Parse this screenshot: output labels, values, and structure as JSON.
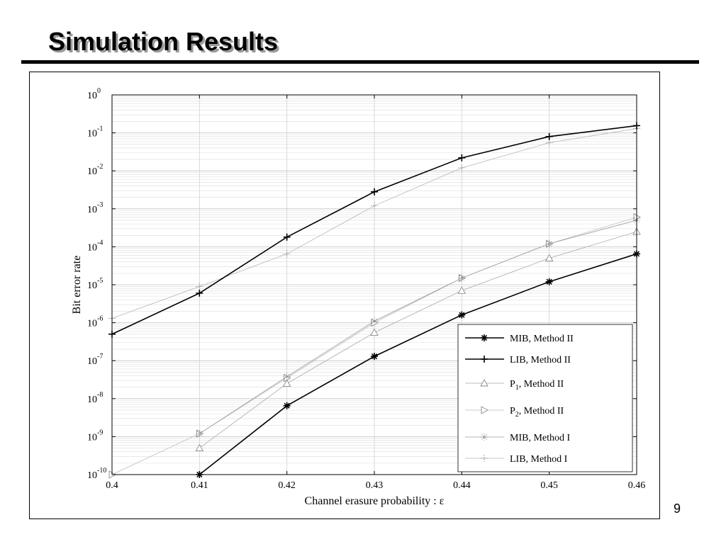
{
  "slide": {
    "title": "Simulation Results",
    "page_number": "9"
  },
  "chart_data": {
    "type": "line",
    "title": "",
    "xlabel": "Channel erasure probability : ε",
    "ylabel": "Bit error rate",
    "xscale": "linear",
    "yscale": "log",
    "xlim": [
      0.4,
      0.46
    ],
    "ylim": [
      1e-10,
      1
    ],
    "xticks": [
      "0.4",
      "0.41",
      "0.42",
      "0.43",
      "0.44",
      "0.45",
      "0.46"
    ],
    "yticks": [
      {
        "base": "10",
        "exp": "0"
      },
      {
        "base": "10",
        "exp": "-1"
      },
      {
        "base": "10",
        "exp": "-2"
      },
      {
        "base": "10",
        "exp": "-3"
      },
      {
        "base": "10",
        "exp": "-4"
      },
      {
        "base": "10",
        "exp": "-5"
      },
      {
        "base": "10",
        "exp": "-6"
      },
      {
        "base": "10",
        "exp": "-7"
      },
      {
        "base": "10",
        "exp": "-8"
      },
      {
        "base": "10",
        "exp": "-9"
      },
      {
        "base": "10",
        "exp": "-10"
      }
    ],
    "grid": true,
    "legend_position": "bottom-right",
    "x": [
      0.4,
      0.41,
      0.42,
      0.43,
      0.44,
      0.45,
      0.46
    ],
    "series": [
      {
        "name": "MIB, Method II",
        "name_main": "MIB, Method II",
        "name_sub": "",
        "name_tail": "",
        "marker": "asterisk",
        "color": "#000000",
        "width": 1.6,
        "values": [
          null,
          1e-10,
          6.5e-09,
          1.3e-07,
          1.6e-06,
          1.2e-05,
          6.5e-05
        ]
      },
      {
        "name": "LIB, Method II",
        "name_main": "LIB, Method II",
        "name_sub": "",
        "name_tail": "",
        "marker": "plus",
        "color": "#000000",
        "width": 1.6,
        "values": [
          5e-07,
          6e-06,
          0.00018,
          0.0028,
          0.022,
          0.08,
          0.155
        ]
      },
      {
        "name": "P1, Method II",
        "name_main": "P",
        "name_sub": "1",
        "name_tail": ", Method II",
        "marker": "triangle",
        "color": "#a8a8a8",
        "width": 0.8,
        "values": [
          null,
          5e-10,
          2.5e-08,
          5.5e-07,
          7e-06,
          5e-05,
          0.00025
        ]
      },
      {
        "name": "P2, Method II",
        "name_main": "P",
        "name_sub": "2",
        "name_tail": ", Method II",
        "marker": "triangle-right",
        "color": "#bdbdbd",
        "width": 0.8,
        "values": [
          1e-10,
          1.2e-09,
          3.5e-08,
          1e-06,
          1.5e-05,
          0.00012,
          0.0006
        ]
      },
      {
        "name": "MIB, Method I",
        "name_main": "MIB, Method I",
        "name_sub": "",
        "name_tail": "",
        "marker": "dotstar",
        "color": "#9a9a9a",
        "width": 0.8,
        "values": [
          null,
          1.2e-09,
          3.8e-08,
          1.1e-06,
          1.5e-05,
          0.00012,
          0.0005
        ]
      },
      {
        "name": "LIB, Method I",
        "name_main": "LIB, Method I",
        "name_sub": "",
        "name_tail": "",
        "marker": "dotplus",
        "color": "#b5b5b5",
        "width": 0.8,
        "values": [
          1.3e-06,
          9e-06,
          6.5e-05,
          0.0012,
          0.012,
          0.055,
          0.13
        ]
      }
    ]
  }
}
